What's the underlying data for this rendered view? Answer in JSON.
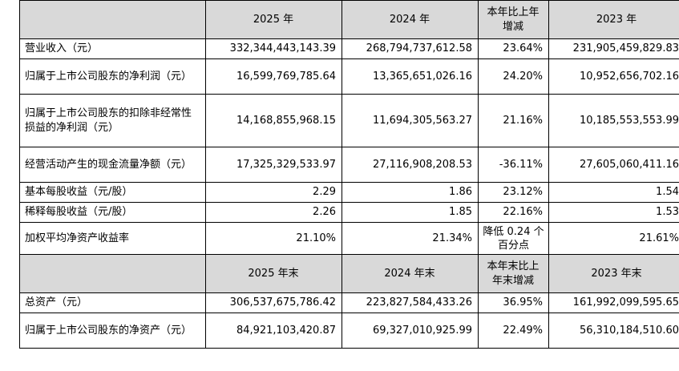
{
  "header1": {
    "label": "",
    "col1": "2025 年",
    "col2": "2024 年",
    "col3": "本年比上年增减",
    "col4": "2023 年"
  },
  "rows1": [
    {
      "label": "营业收入（元）",
      "v2025": "332,344,443,143.39",
      "v2024": "268,794,737,612.58",
      "change": "23.64%",
      "v2023": "231,905,459,829.83"
    },
    {
      "label": "归属于上市公司股东的净利润（元）",
      "v2025": "16,599,769,785.64",
      "v2024": "13,365,651,026.16",
      "change": "24.20%",
      "v2023": "10,952,656,702.16"
    },
    {
      "label": "归属于上市公司股东的扣除非经常性损益的净利润（元）",
      "v2025": "14,168,855,968.15",
      "v2024": "11,694,305,563.27",
      "change": "21.16%",
      "v2023": "10,185,553,553.99"
    },
    {
      "label": "经营活动产生的现金流量净额（元）",
      "v2025": "17,325,329,533.97",
      "v2024": "27,116,908,208.53",
      "change": "-36.11%",
      "v2023": "27,605,060,411.16"
    },
    {
      "label": "基本每股收益（元/股）",
      "v2025": "2.29",
      "v2024": "1.86",
      "change": "23.12%",
      "v2023": "1.54"
    },
    {
      "label": "稀释每股收益（元/股）",
      "v2025": "2.26",
      "v2024": "1.85",
      "change": "22.16%",
      "v2023": "1.53"
    },
    {
      "label": "加权平均净资产收益率",
      "v2025": "21.10%",
      "v2024": "21.34%",
      "change": "降低 0.24 个百分点",
      "v2023": "21.61%"
    }
  ],
  "header2": {
    "label": "",
    "col1": "2025 年末",
    "col2": "2024 年末",
    "col3": "本年末比上年末增减",
    "col4": "2023 年末"
  },
  "rows2": [
    {
      "label": "总资产（元）",
      "v2025": "306,537,675,786.42",
      "v2024": "223,827,584,433.26",
      "change": "36.95%",
      "v2023": "161,992,099,595.65"
    },
    {
      "label": "归属于上市公司股东的净资产（元）",
      "v2025": "84,921,103,420.87",
      "v2024": "69,327,010,925.99",
      "change": "22.49%",
      "v2023": "56,310,184,510.60"
    }
  ]
}
